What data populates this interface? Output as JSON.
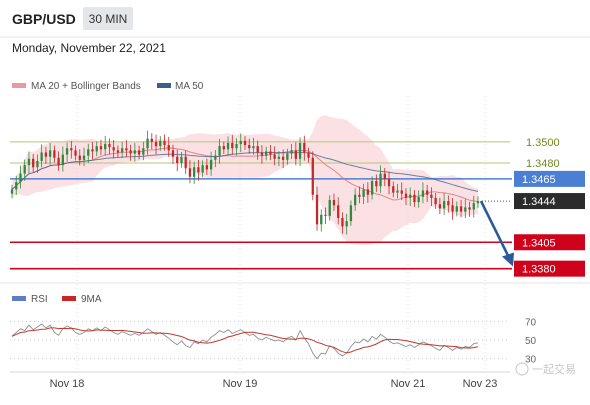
{
  "header": {
    "pair": "GBP/USD",
    "timeframe": "30 MIN",
    "date": "Monday, November 22, 2021"
  },
  "colors": {
    "candle_up": "#2e8b3d",
    "candle_down": "#c62828",
    "bands": "#f7c9cc",
    "ma20": "#e06c75",
    "ma50": "#3a5f8f",
    "resistance": "#b7c47a",
    "current": "#4a7fd4",
    "support": "#d0021b",
    "arrow": "#2a5a9a",
    "rsi": "#8a8f99",
    "rsi_ma": "#c0392b"
  },
  "legend": {
    "main": [
      {
        "label": "MA 20 + Bollinger Bands",
        "color": "#e89aa2"
      },
      {
        "label": "MA 50",
        "color": "#3a5f8f"
      }
    ],
    "rsi": [
      {
        "label": "RSI",
        "color": "#5b7fc7"
      },
      {
        "label": "9MA",
        "color": "#c62828"
      }
    ]
  },
  "watermark": "一起交易",
  "chart_data": [
    {
      "type": "candlestick",
      "x_labels": [
        "Nov 18",
        "Nov 19",
        "Nov 21",
        "Nov 23"
      ],
      "ylim": [
        1.3374,
        1.3534
      ],
      "levels": [
        {
          "value": 1.35,
          "label": "1.3500",
          "kind": "resistance"
        },
        {
          "value": 1.348,
          "label": "1.3480",
          "kind": "resistance"
        },
        {
          "value": 1.3465,
          "label": "1.3465",
          "kind": "current"
        },
        {
          "value": 1.3444,
          "label": "1.3444",
          "kind": "last"
        },
        {
          "value": 1.3405,
          "label": "1.3405",
          "kind": "support"
        },
        {
          "value": 1.338,
          "label": "1.3380",
          "kind": "support"
        }
      ],
      "closes": [
        1.3455,
        1.3462,
        1.347,
        1.3478,
        1.3484,
        1.3476,
        1.3482,
        1.349,
        1.3486,
        1.3492,
        1.3485,
        1.3478,
        1.3488,
        1.3494,
        1.3492,
        1.3487,
        1.3483,
        1.3487,
        1.3493,
        1.3491,
        1.3496,
        1.3493,
        1.3498,
        1.3495,
        1.3492,
        1.349,
        1.3494,
        1.3492,
        1.3489,
        1.3492,
        1.3488,
        1.3494,
        1.3503,
        1.35,
        1.3496,
        1.3501,
        1.3497,
        1.3492,
        1.3486,
        1.348,
        1.3486,
        1.3475,
        1.3467,
        1.3476,
        1.3471,
        1.3478,
        1.3474,
        1.3483,
        1.3487,
        1.3496,
        1.3493,
        1.3499,
        1.3494,
        1.3498,
        1.3501,
        1.3497,
        1.3494,
        1.3496,
        1.349,
        1.3487,
        1.3491,
        1.3488,
        1.3484,
        1.3486,
        1.3483,
        1.3489,
        1.3492,
        1.3484,
        1.3499,
        1.349,
        1.3485,
        1.345,
        1.3422,
        1.3431,
        1.343,
        1.3445,
        1.344,
        1.3428,
        1.342,
        1.3425,
        1.344,
        1.345,
        1.3448,
        1.3455,
        1.345,
        1.3463,
        1.3458,
        1.347,
        1.3465,
        1.3458,
        1.3452,
        1.3454,
        1.3451,
        1.3447,
        1.345,
        1.3443,
        1.3448,
        1.3454,
        1.345,
        1.3447,
        1.3441,
        1.3437,
        1.3444,
        1.344,
        1.3434,
        1.3439,
        1.3434,
        1.3438,
        1.3436,
        1.3442,
        1.3444
      ],
      "forecast": {
        "from": 1.3444,
        "to": 1.3382
      }
    },
    {
      "type": "line",
      "name": "RSI",
      "levels": [
        70,
        50,
        30
      ],
      "ylim": [
        20,
        80
      ],
      "series": [
        {
          "name": "RSI",
          "values": [
            54,
            58,
            62,
            60,
            66,
            61,
            64,
            67,
            63,
            66,
            58,
            55,
            62,
            65,
            63,
            58,
            56,
            58,
            62,
            60,
            63,
            60,
            64,
            61,
            58,
            56,
            59,
            57,
            55,
            57,
            55,
            58,
            62,
            59,
            56,
            58,
            55,
            52,
            48,
            45,
            49,
            44,
            42,
            48,
            46,
            50,
            48,
            53,
            56,
            60,
            58,
            61,
            57,
            59,
            61,
            58,
            55,
            56,
            52,
            50,
            53,
            51,
            49,
            50,
            48,
            52,
            54,
            50,
            60,
            52,
            46,
            36,
            30,
            36,
            35,
            44,
            41,
            36,
            33,
            36,
            43,
            48,
            47,
            51,
            48,
            54,
            51,
            56,
            53,
            49,
            46,
            47,
            45,
            43,
            45,
            42,
            45,
            48,
            46,
            44,
            41,
            39,
            44,
            42,
            39,
            42,
            40,
            43,
            42,
            46,
            47
          ]
        }
      ]
    }
  ]
}
